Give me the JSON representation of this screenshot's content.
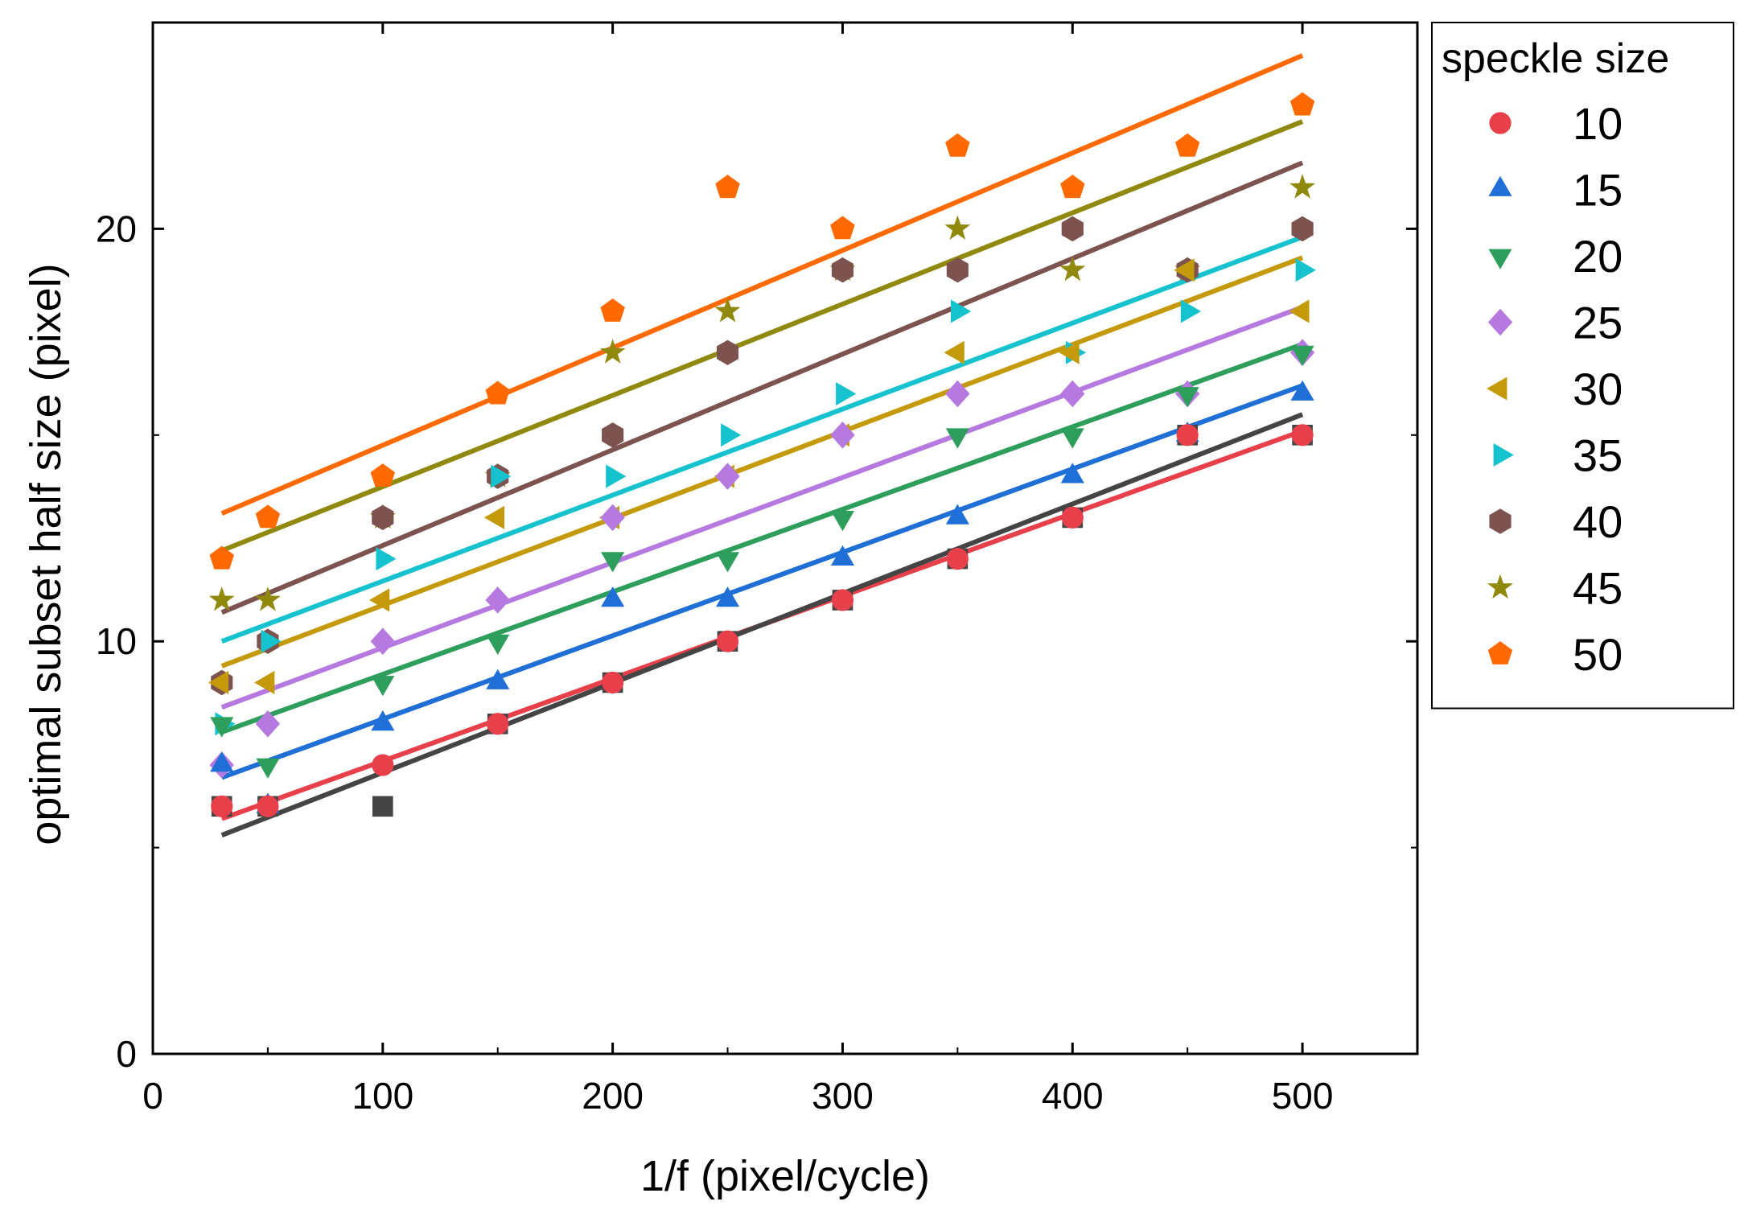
{
  "chart_data": {
    "type": "scatter",
    "xlabel": "1/f (pixel/cycle)",
    "ylabel": "optimal subset half size (pixel)",
    "xlim": [
      0,
      550
    ],
    "ylim": [
      0,
      25
    ],
    "x_ticks": [
      0,
      100,
      200,
      300,
      400,
      500
    ],
    "y_ticks": [
      0,
      10,
      20
    ],
    "grid": false,
    "legend": {
      "title": "speckle size",
      "placement": "outside-right-top"
    },
    "x": [
      30,
      50,
      100,
      150,
      200,
      250,
      300,
      350,
      400,
      450,
      500
    ],
    "series": [
      {
        "name": "10",
        "color": "#e8404a",
        "marker": "circle",
        "values": [
          6,
          6,
          7,
          8,
          9,
          10,
          11,
          12,
          13,
          15,
          15
        ],
        "fit": [
          5.7,
          15.1
        ]
      },
      {
        "name": "15",
        "color": "#1f6fd6",
        "marker": "triangle-up",
        "values": [
          7,
          6,
          8,
          9,
          11,
          11,
          12,
          13,
          14,
          15,
          16
        ],
        "fit": [
          6.7,
          16.2
        ]
      },
      {
        "name": "20",
        "color": "#2e9e5c",
        "marker": "triangle-down",
        "values": [
          8,
          7,
          9,
          10,
          12,
          12,
          13,
          15,
          15,
          16,
          17
        ],
        "fit": [
          7.8,
          17.2
        ]
      },
      {
        "name": "25",
        "color": "#b579e0",
        "marker": "diamond",
        "values": [
          7,
          8,
          10,
          11,
          13,
          14,
          15,
          16,
          16,
          16,
          17
        ],
        "fit": [
          8.4,
          18.1
        ]
      },
      {
        "name": "30",
        "color": "#c49a0b",
        "marker": "triangle-left",
        "values": [
          9,
          9,
          11,
          13,
          13,
          14,
          15,
          17,
          17,
          19,
          18
        ],
        "fit": [
          9.4,
          19.3
        ]
      },
      {
        "name": "35",
        "color": "#17c2cf",
        "marker": "triangle-right",
        "values": [
          8,
          10,
          12,
          14,
          14,
          15,
          16,
          18,
          17,
          18,
          19
        ],
        "fit": [
          10.0,
          19.8
        ]
      },
      {
        "name": "40",
        "color": "#7d5350",
        "marker": "hexagon",
        "values": [
          9,
          10,
          13,
          14,
          15,
          17,
          19,
          19,
          20,
          19,
          20
        ],
        "fit": [
          10.7,
          21.6
        ]
      },
      {
        "name": "45",
        "color": "#8f8a0e",
        "marker": "star",
        "values": [
          11,
          11,
          13,
          14,
          17,
          18,
          19,
          20,
          19,
          19,
          21
        ],
        "fit": [
          12.2,
          22.6
        ]
      },
      {
        "name": "50",
        "color": "#ff6a00",
        "marker": "pentagon",
        "values": [
          12,
          13,
          14,
          16,
          18,
          21,
          20,
          22,
          21,
          22,
          23
        ],
        "fit": [
          13.1,
          24.2
        ]
      },
      {
        "name": "",
        "color": "#444444",
        "marker": "square",
        "x": [
          30,
          50,
          100,
          150,
          200,
          250,
          300,
          350,
          400,
          450,
          500
        ],
        "values": [
          6,
          6,
          6,
          8,
          9,
          10,
          11,
          12,
          13,
          15,
          15
        ],
        "fit": [
          5.3,
          15.5
        ],
        "in_legend": false
      }
    ]
  }
}
